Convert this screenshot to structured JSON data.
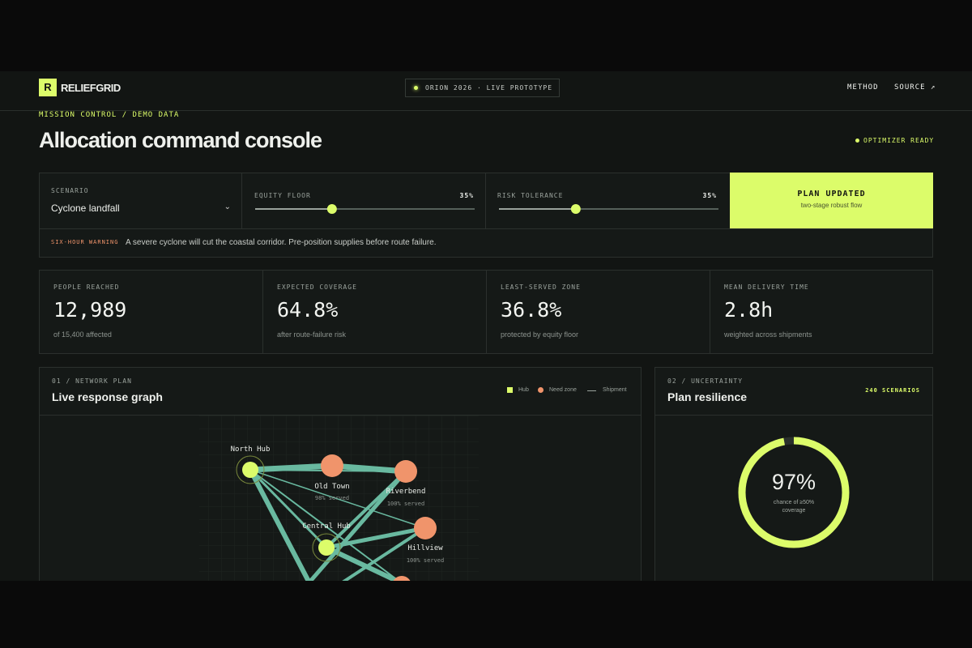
{
  "header": {
    "logo_letter": "R",
    "brand": "RELIEF",
    "brand_accent": "GRID",
    "status_pill": "ORION 2026 · LIVE PROTOTYPE",
    "nav": [
      "METHOD",
      "SOURCE ↗"
    ]
  },
  "page": {
    "breadcrumb": "MISSION CONTROL / DEMO DATA",
    "title": "Allocation command console",
    "status": "OPTIMIZER READY"
  },
  "controls": {
    "scenario": {
      "label": "SCENARIO",
      "value": "Cyclone landfall"
    },
    "equity_floor": {
      "label": "EQUITY FLOOR",
      "setting": {
        "value": 35,
        "label": "35%"
      }
    },
    "risk_tolerance": {
      "label": "RISK TOLERANCE",
      "setting": {
        "value": 35,
        "label": "35%"
      }
    },
    "plan": {
      "title": "PLAN UPDATED",
      "subtitle": "two-stage robust flow"
    }
  },
  "warning": {
    "tag": "SIX-HOUR WARNING",
    "text": "A severe cyclone will cut the coastal corridor. Pre-position supplies before route failure."
  },
  "kpis": [
    {
      "label": "PEOPLE REACHED",
      "value": "12,989",
      "note": "of 15,400 affected"
    },
    {
      "label": "EXPECTED COVERAGE",
      "value": "64.8%",
      "note": "after route-failure risk"
    },
    {
      "label": "LEAST-SERVED ZONE",
      "value": "36.8%",
      "note": "protected by equity floor"
    },
    {
      "label": "MEAN DELIVERY TIME",
      "value": "2.8h",
      "note": "weighted across shipments"
    }
  ],
  "network": {
    "kicker": "01 / NETWORK PLAN",
    "title": "Live response graph",
    "legend": [
      "Hub",
      "Need zone",
      "Shipment"
    ],
    "nodes": [
      {
        "label": "North Hub"
      },
      {
        "label": "Old Town",
        "note": "98% served"
      },
      {
        "label": "Riverbend",
        "note": "100% served"
      },
      {
        "label": "Central Hub"
      },
      {
        "label": "Hillview",
        "note": "100% served"
      }
    ]
  },
  "resilience": {
    "kicker": "02 / UNCERTAINTY",
    "title": "Plan resilience",
    "badge": "240 SCENARIOS",
    "chance": {
      "value": 97,
      "label": "97%"
    },
    "caption": "chance of ≥50% coverage"
  }
}
